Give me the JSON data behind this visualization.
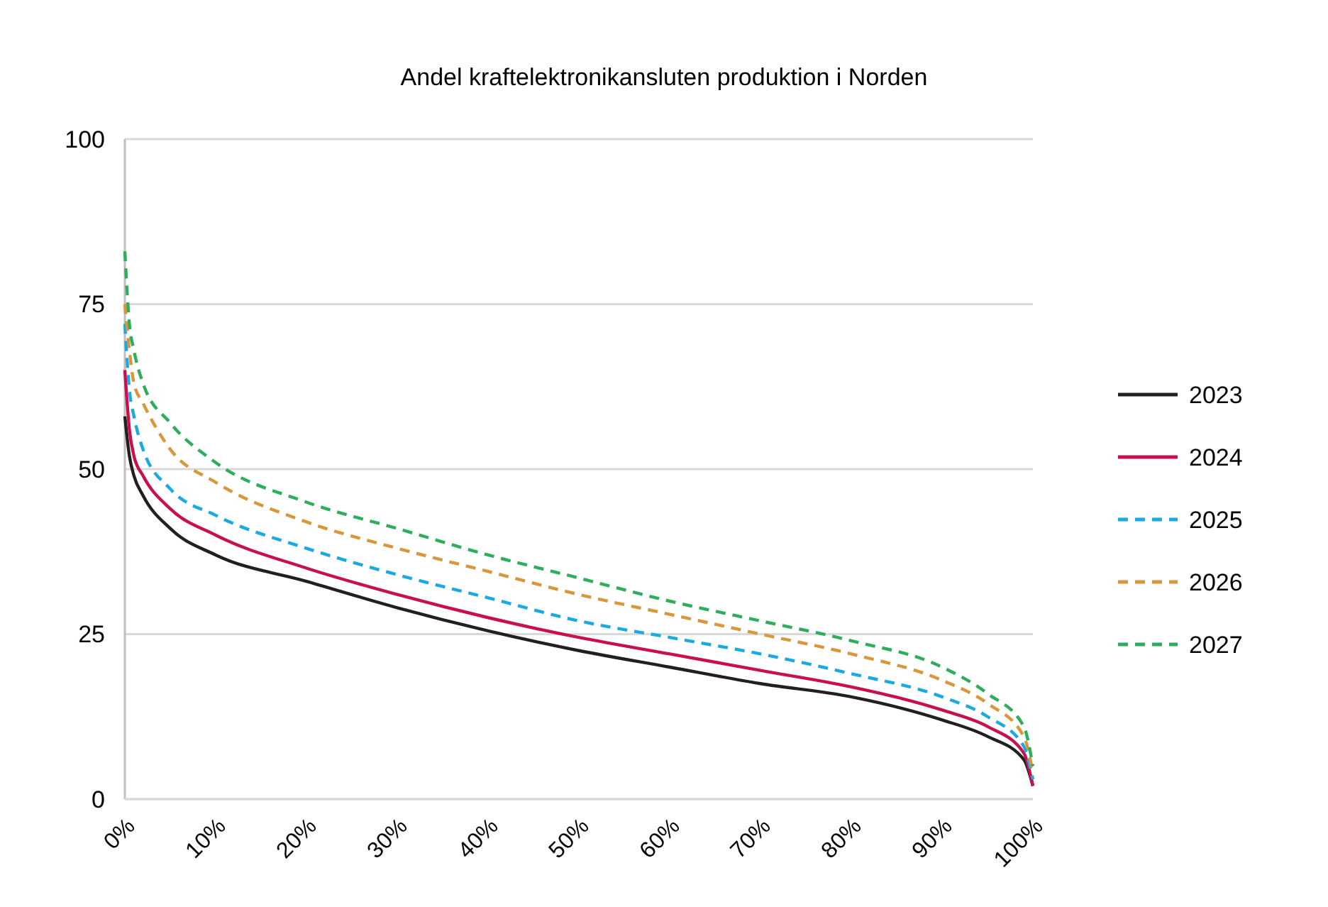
{
  "chart_data": {
    "type": "line",
    "title": "Andel kraftelektronikansluten produktion i Norden",
    "x": [
      0,
      0.5,
      1,
      2,
      5,
      10,
      20,
      30,
      40,
      50,
      60,
      70,
      80,
      90,
      95,
      99,
      100
    ],
    "xlim": [
      0,
      100
    ],
    "xticks": [
      {
        "value": 0,
        "label": "0%"
      },
      {
        "value": 10,
        "label": "10%"
      },
      {
        "value": 20,
        "label": "20%"
      },
      {
        "value": 30,
        "label": "30%"
      },
      {
        "value": 40,
        "label": "40%"
      },
      {
        "value": 50,
        "label": "50%"
      },
      {
        "value": 60,
        "label": "60%"
      },
      {
        "value": 70,
        "label": "70%"
      },
      {
        "value": 80,
        "label": "80%"
      },
      {
        "value": 90,
        "label": "90%"
      },
      {
        "value": 100,
        "label": "100%"
      }
    ],
    "ylim": [
      0,
      100
    ],
    "yticks": [
      0,
      25,
      50,
      75,
      100
    ],
    "grid": "y",
    "legend": "right",
    "marker": "none",
    "series": [
      {
        "name": "2023",
        "color": "#231f20",
        "line_style": "solid",
        "values": [
          58,
          52,
          49,
          46,
          41,
          37,
          33,
          29,
          25.5,
          22.5,
          20,
          17.5,
          15.5,
          12,
          9.5,
          6,
          2
        ]
      },
      {
        "name": "2024",
        "color": "#c8104e",
        "line_style": "solid",
        "values": [
          65,
          56,
          52,
          49,
          44,
          40,
          35,
          31,
          27.5,
          24.5,
          22,
          19.5,
          17,
          13.5,
          11,
          7,
          2
        ]
      },
      {
        "name": "2025",
        "color": "#1ba9e1",
        "line_style": "dashed",
        "values": [
          72,
          62,
          58,
          53,
          47,
          43,
          38,
          34,
          30.5,
          27,
          24.5,
          22,
          19,
          15.5,
          12.5,
          8,
          3
        ]
      },
      {
        "name": "2026",
        "color": "#d9963a",
        "line_style": "dashed",
        "values": [
          75,
          68,
          63,
          60,
          53,
          48,
          42,
          38,
          34.5,
          31,
          28,
          25,
          22,
          18,
          14.5,
          9.5,
          4
        ]
      },
      {
        "name": "2027",
        "color": "#2eae5c",
        "line_style": "dashed",
        "values": [
          83,
          72,
          68,
          63,
          57,
          51,
          45,
          41,
          37,
          33.5,
          30,
          27,
          24,
          20,
          16,
          11,
          5
        ]
      }
    ]
  }
}
